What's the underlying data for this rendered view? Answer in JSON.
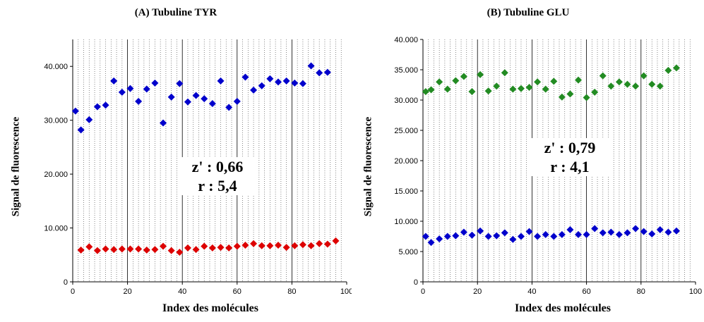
{
  "chart_data": [
    {
      "type": "scatter",
      "title": "(A) Tubuline TYR",
      "xlabel": "Index des molécules",
      "ylabel": "Signal de fluorescence",
      "xlim": [
        0,
        100
      ],
      "ylim": [
        0,
        45000
      ],
      "xticks": [
        0,
        20,
        40,
        60,
        80,
        100
      ],
      "xtick_labels": [
        "0",
        "20",
        "40",
        "60",
        "80",
        "100"
      ],
      "yticks": [
        0,
        10000,
        20000,
        30000,
        40000
      ],
      "ytick_labels": [
        "0",
        "10.000",
        "20.000",
        "30.000",
        "40.000"
      ],
      "annotation": [
        "z' : 0,66",
        "r : 5,4"
      ],
      "grid": "vertical dotted lines every 2 units, solid every 20",
      "series": [
        {
          "color": "#0000cc",
          "marker": "diamond",
          "x": [
            1,
            3,
            6,
            9,
            12,
            15,
            18,
            21,
            24,
            27,
            30,
            33,
            36,
            39,
            42,
            45,
            48,
            51,
            54,
            57,
            60,
            63,
            66,
            69,
            72,
            75,
            78,
            81,
            84,
            87,
            90,
            93
          ],
          "y": [
            31700,
            28200,
            30100,
            32500,
            32800,
            37300,
            35200,
            35900,
            33500,
            35800,
            36900,
            29500,
            34300,
            36800,
            33400,
            34600,
            34000,
            33100,
            37300,
            32400,
            33500,
            38000,
            35600,
            36400,
            37700,
            37100,
            37300,
            36900,
            36800,
            40100,
            38800,
            38900
          ]
        },
        {
          "color": "#dd0000",
          "marker": "diamond",
          "x": [
            3,
            6,
            9,
            12,
            15,
            18,
            21,
            24,
            27,
            30,
            33,
            36,
            39,
            42,
            45,
            48,
            51,
            54,
            57,
            60,
            63,
            66,
            69,
            72,
            75,
            78,
            81,
            84,
            87,
            90,
            93,
            96
          ],
          "y": [
            5900,
            6500,
            5800,
            6100,
            6000,
            6100,
            6100,
            6100,
            5900,
            6000,
            6600,
            5800,
            5500,
            6300,
            6000,
            6600,
            6300,
            6400,
            6300,
            6600,
            6800,
            7100,
            6700,
            6700,
            6800,
            6400,
            6700,
            6900,
            6700,
            7100,
            7000,
            7600
          ]
        }
      ]
    },
    {
      "type": "scatter",
      "title": "(B) Tubuline GLU",
      "xlabel": "Index des molécules",
      "ylabel": "Signal de fluorescence",
      "xlim": [
        0,
        100
      ],
      "ylim": [
        0,
        40000
      ],
      "xticks": [
        0,
        20,
        40,
        60,
        80,
        100
      ],
      "xtick_labels": [
        "0",
        "20",
        "40",
        "60",
        "80",
        "100"
      ],
      "yticks": [
        0,
        5000,
        10000,
        15000,
        20000,
        25000,
        30000,
        35000,
        40000
      ],
      "ytick_labels": [
        "0",
        "5.000",
        "10.000",
        "15.000",
        "20.000",
        "25.000",
        "30.000",
        "35.000",
        "40.000"
      ],
      "annotation": [
        "z' : 0,79",
        "r : 4,1"
      ],
      "grid": "vertical dotted lines every 2 units, solid every 20",
      "series": [
        {
          "color": "#228b22",
          "marker": "diamond",
          "x": [
            1,
            3,
            6,
            9,
            12,
            15,
            18,
            21,
            24,
            27,
            30,
            33,
            36,
            39,
            42,
            45,
            48,
            51,
            54,
            57,
            60,
            63,
            66,
            69,
            72,
            75,
            78,
            81,
            84,
            87,
            90,
            93
          ],
          "y": [
            31400,
            31700,
            33000,
            31800,
            33200,
            33900,
            31400,
            34200,
            31500,
            32300,
            34500,
            31800,
            31900,
            32100,
            33000,
            31800,
            33100,
            30500,
            31000,
            33300,
            30400,
            31300,
            34000,
            32300,
            33000,
            32600,
            32300,
            34000,
            32600,
            32300,
            34900,
            35300
          ]
        },
        {
          "color": "#0000cc",
          "marker": "diamond",
          "x": [
            1,
            3,
            6,
            9,
            12,
            15,
            18,
            21,
            24,
            27,
            30,
            33,
            36,
            39,
            42,
            45,
            48,
            51,
            54,
            57,
            60,
            63,
            66,
            69,
            72,
            75,
            78,
            81,
            84,
            87,
            90,
            93
          ],
          "y": [
            7500,
            6500,
            7100,
            7500,
            7600,
            8200,
            7700,
            8400,
            7500,
            7600,
            8100,
            7000,
            7500,
            8300,
            7500,
            7800,
            7500,
            7800,
            8600,
            7800,
            7800,
            8800,
            8100,
            8200,
            7800,
            8100,
            8800,
            8300,
            7900,
            8600,
            8200,
            8400
          ]
        }
      ]
    }
  ]
}
